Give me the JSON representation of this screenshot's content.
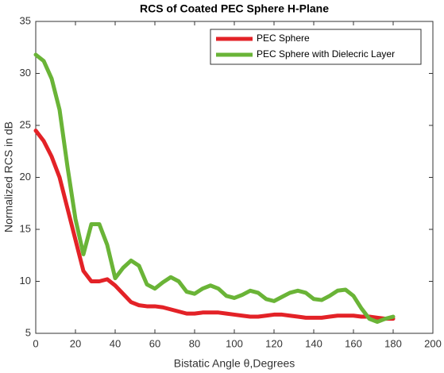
{
  "chart_data": {
    "type": "line",
    "title": "RCS of Coated PEC Sphere H-Plane",
    "x_label": "Bistatic Angle θ,Degrees",
    "y_label": "Normalized RCS in dB",
    "x": [
      0,
      4,
      8,
      12,
      16,
      20,
      24,
      28,
      32,
      36,
      40,
      44,
      48,
      52,
      56,
      60,
      64,
      68,
      72,
      76,
      80,
      84,
      88,
      92,
      96,
      100,
      104,
      108,
      112,
      116,
      120,
      124,
      128,
      132,
      136,
      140,
      144,
      148,
      152,
      156,
      160,
      164,
      168,
      172,
      176,
      180
    ],
    "series": [
      {
        "name": "PEC Sphere",
        "color": "#e32227",
        "values": [
          24.5,
          23.5,
          22,
          20,
          17,
          14,
          11,
          10,
          10,
          10.2,
          9.6,
          8.8,
          8,
          7.7,
          7.6,
          7.6,
          7.5,
          7.3,
          7.1,
          6.9,
          6.9,
          7,
          7,
          7,
          6.9,
          6.8,
          6.7,
          6.6,
          6.6,
          6.7,
          6.8,
          6.8,
          6.7,
          6.6,
          6.5,
          6.5,
          6.5,
          6.6,
          6.7,
          6.7,
          6.7,
          6.6,
          6.6,
          6.5,
          6.4,
          6.4
        ]
      },
      {
        "name": "PEC Sphere with Dielecric Layer",
        "color": "#6ab437",
        "values": [
          31.8,
          31.2,
          29.5,
          26.5,
          21,
          16,
          12.6,
          15.5,
          15.5,
          13.5,
          10.3,
          11.3,
          12,
          11.5,
          9.7,
          9.3,
          9.9,
          10.4,
          10,
          9,
          8.8,
          9.3,
          9.6,
          9.3,
          8.6,
          8.4,
          8.7,
          9.1,
          8.9,
          8.3,
          8.1,
          8.5,
          8.9,
          9.1,
          8.9,
          8.3,
          8.2,
          8.6,
          9.1,
          9.2,
          8.6,
          7.4,
          6.4,
          6.1,
          6.4,
          6.6
        ]
      }
    ],
    "xlim": [
      0,
      200
    ],
    "xticks": [
      0,
      20,
      40,
      60,
      80,
      100,
      120,
      140,
      160,
      180,
      200
    ],
    "ylim": [
      5,
      35
    ],
    "yticks": [
      5,
      10,
      15,
      20,
      25,
      30,
      35
    ],
    "legend": "upper right"
  }
}
